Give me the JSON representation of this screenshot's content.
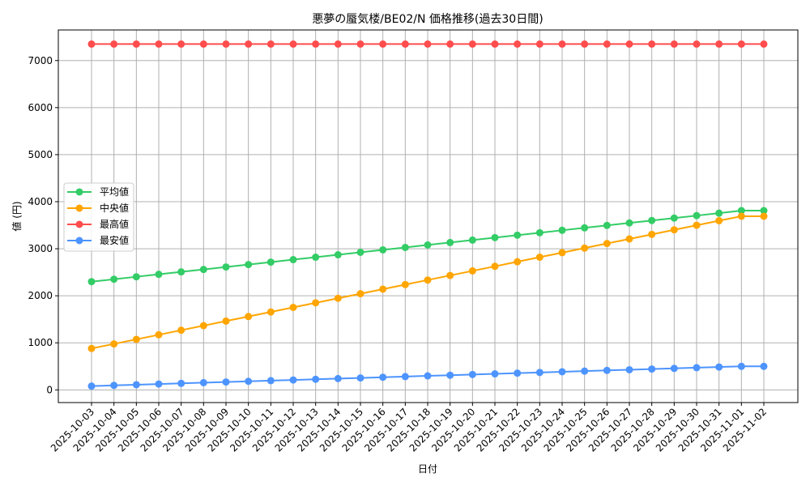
{
  "chart_data": {
    "type": "line",
    "title": "悪夢の蜃気楼/BE02/N 価格推移(過去30日間)",
    "xlabel": "日付",
    "ylabel": "値 (円)",
    "ylim": [
      -270,
      7650
    ],
    "yticks": [
      0,
      1000,
      2000,
      3000,
      4000,
      5000,
      6000,
      7000
    ],
    "grid": true,
    "legend_position": "center left",
    "categories": [
      "2025-10-03",
      "2025-10-04",
      "2025-10-05",
      "2025-10-06",
      "2025-10-07",
      "2025-10-08",
      "2025-10-09",
      "2025-10-10",
      "2025-10-11",
      "2025-10-12",
      "2025-10-13",
      "2025-10-14",
      "2025-10-15",
      "2025-10-16",
      "2025-10-17",
      "2025-10-18",
      "2025-10-19",
      "2025-10-20",
      "2025-10-21",
      "2025-10-22",
      "2025-10-23",
      "2025-10-24",
      "2025-10-25",
      "2025-10-26",
      "2025-10-27",
      "2025-10-28",
      "2025-10-29",
      "2025-10-30",
      "2025-10-31",
      "2025-11-01",
      "2025-11-02"
    ],
    "series": [
      {
        "name": "平均値",
        "color": "#33cc66",
        "values": [
          2300,
          2352,
          2404,
          2456,
          2508,
          2560,
          2612,
          2664,
          2716,
          2768,
          2820,
          2872,
          2924,
          2976,
          3028,
          3080,
          3132,
          3184,
          3236,
          3288,
          3340,
          3392,
          3444,
          3496,
          3548,
          3600,
          3652,
          3704,
          3756,
          3810,
          3810
        ]
      },
      {
        "name": "中央値",
        "color": "#ffa500",
        "values": [
          880,
          977,
          1074,
          1171,
          1268,
          1365,
          1462,
          1559,
          1656,
          1753,
          1850,
          1947,
          2044,
          2141,
          2238,
          2335,
          2432,
          2529,
          2626,
          2723,
          2820,
          2917,
          3014,
          3111,
          3208,
          3305,
          3402,
          3499,
          3596,
          3690,
          3690
        ]
      },
      {
        "name": "最高値",
        "color": "#ff4d4d",
        "values": [
          7350,
          7350,
          7350,
          7350,
          7350,
          7350,
          7350,
          7350,
          7350,
          7350,
          7350,
          7350,
          7350,
          7350,
          7350,
          7350,
          7350,
          7350,
          7350,
          7350,
          7350,
          7350,
          7350,
          7350,
          7350,
          7350,
          7350,
          7350,
          7350,
          7350,
          7350
        ]
      },
      {
        "name": "最安値",
        "color": "#4d94ff",
        "values": [
          80,
          95,
          109,
          124,
          138,
          153,
          167,
          182,
          196,
          211,
          225,
          240,
          254,
          269,
          283,
          298,
          312,
          327,
          341,
          356,
          370,
          385,
          399,
          414,
          428,
          443,
          457,
          472,
          486,
          500,
          500
        ]
      }
    ]
  }
}
